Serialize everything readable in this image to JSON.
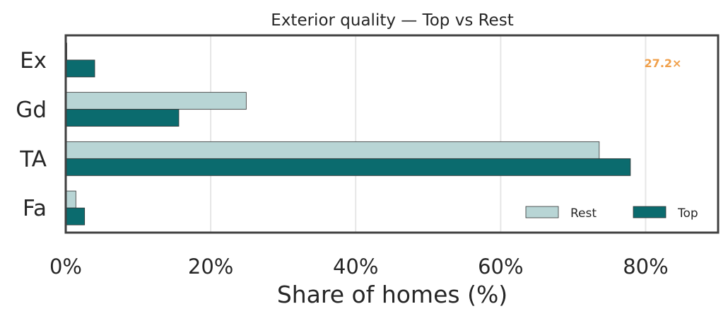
{
  "chart_data": {
    "type": "bar",
    "orientation": "horizontal",
    "title": "Exterior quality — Top vs Rest",
    "xlabel": "Share of homes (%)",
    "ylabel": "",
    "categories": [
      "Ex",
      "Gd",
      "TA",
      "Fa"
    ],
    "xlim": [
      0,
      90
    ],
    "xticks": [
      0,
      20,
      40,
      60,
      80
    ],
    "xtick_labels": [
      "0%",
      "20%",
      "40%",
      "60%",
      "80%"
    ],
    "grid": "vertical",
    "series": [
      {
        "name": "Rest",
        "values": [
          0.15,
          24.9,
          73.6,
          1.4
        ],
        "color": "#b8d5d5"
      },
      {
        "name": "Top",
        "values": [
          4.0,
          15.6,
          77.9,
          2.6
        ],
        "color": "#0b6b6e"
      }
    ],
    "legend": {
      "placement": "lower-right",
      "entries": [
        "Rest",
        "Top"
      ]
    },
    "annotation": {
      "text": "27.2×",
      "color": "#f0a04b",
      "category": "Ex"
    }
  }
}
